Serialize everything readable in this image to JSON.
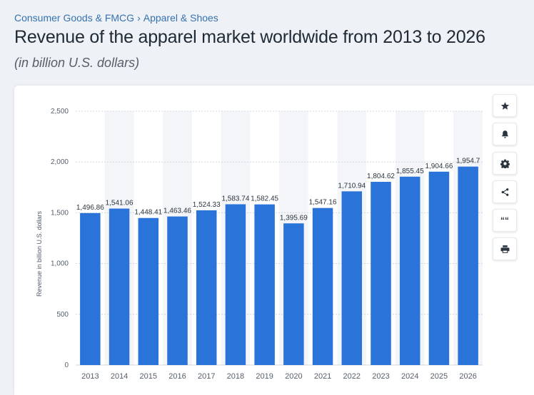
{
  "breadcrumb": {
    "category": "Consumer Goods & FMCG",
    "separator": "›",
    "subcategory": "Apparel & Shoes"
  },
  "header": {
    "title": "Revenue of the apparel market worldwide from 2013 to 2026",
    "subtitle": "(in billion U.S. dollars)"
  },
  "toolbar": {
    "icons": [
      "star-icon",
      "bell-icon",
      "gear-icon",
      "share-icon",
      "quote-icon",
      "print-icon"
    ],
    "quote_glyph": "““"
  },
  "colors": {
    "bar": "#2a73d9",
    "band": "#f3f5f8",
    "grid": "#cfd5dc",
    "tick_text": "#555e6a",
    "label_text": "#2b3540"
  },
  "chart_data": {
    "type": "bar",
    "title": "",
    "xlabel": "",
    "ylabel": "Revenue in billion U.S. dollars",
    "ylim": [
      0,
      2500
    ],
    "yticks": [
      0,
      500,
      1000,
      1500,
      2000,
      2500
    ],
    "ytick_labels": [
      "0",
      "500",
      "1,000",
      "1,500",
      "2,000",
      "2,500"
    ],
    "grid": true,
    "categories": [
      "2013",
      "2014",
      "2015",
      "2016",
      "2017",
      "2018",
      "2019",
      "2020",
      "2021",
      "2022",
      "2023",
      "2024",
      "2025",
      "2026"
    ],
    "values": [
      1496.86,
      1541.06,
      1448.41,
      1463.46,
      1524.33,
      1583.74,
      1582.45,
      1395.69,
      1547.16,
      1710.94,
      1804.62,
      1855.45,
      1904.66,
      1954.7
    ],
    "value_labels": [
      "1,496.86",
      "1,541.06",
      "1,448.41",
      "1,463.46",
      "1,524.33",
      "1,583.74",
      "1,582.45",
      "1,395.69",
      "1,547.16",
      "1,710.94",
      "1,804.62",
      "1,855.45",
      "1,904.66",
      "1,954.7"
    ]
  }
}
